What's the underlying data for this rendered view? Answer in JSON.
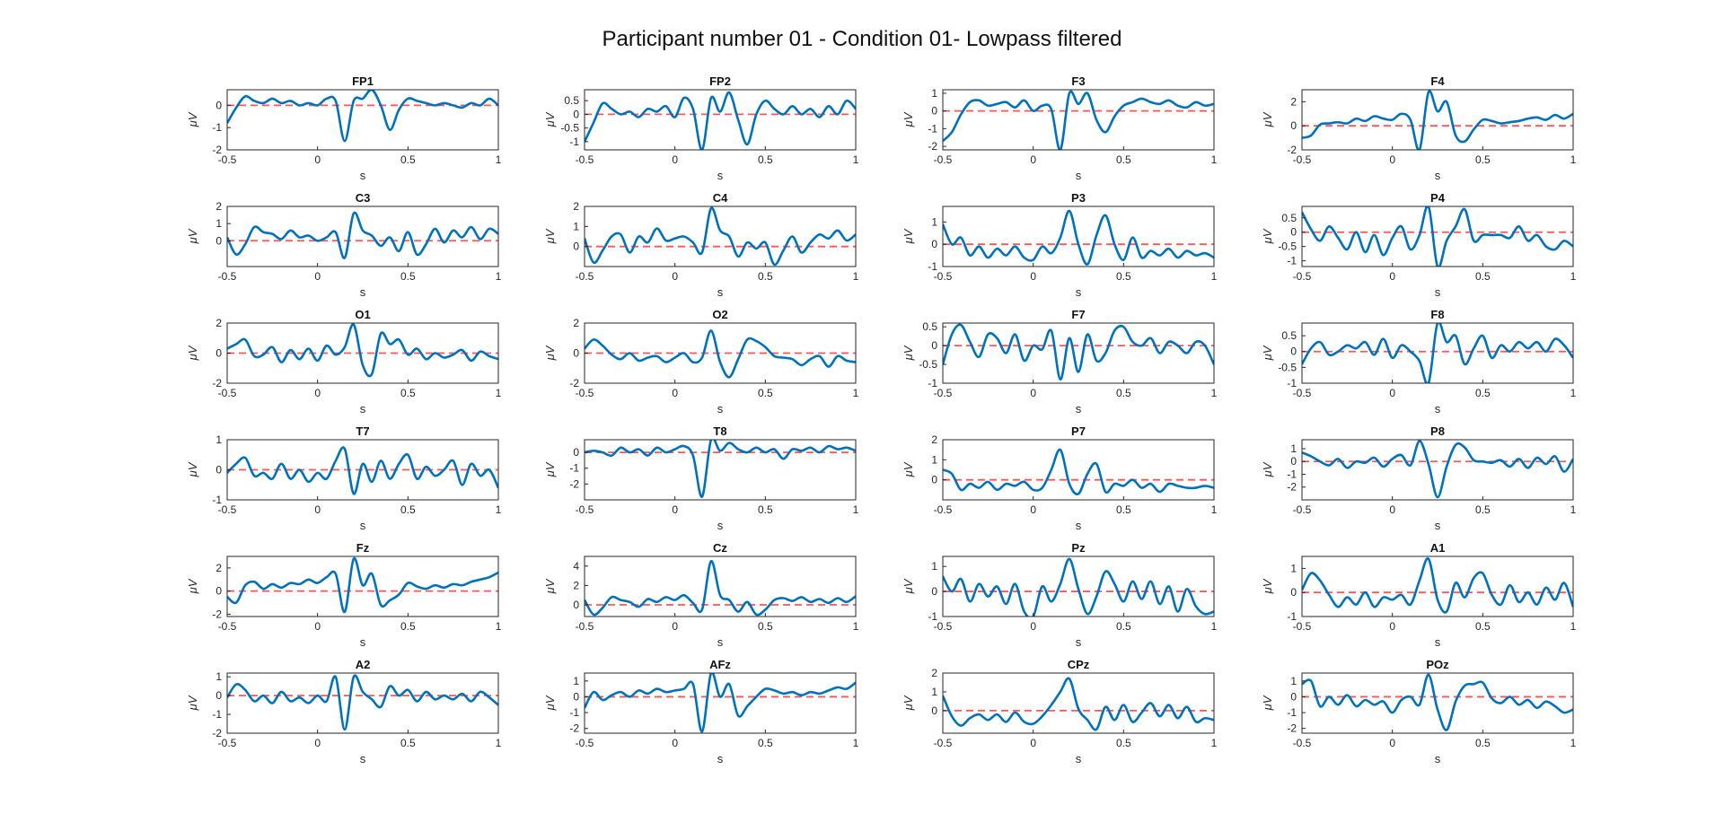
{
  "figure": {
    "title": "Participant number 01 - Condition 01- Lowpass filtered"
  },
  "style": {
    "signal_color": "#0072bd",
    "baseline_color": "#ff5555"
  },
  "chart_data": {
    "type": "line",
    "layout": "6x4 small multiples",
    "xlabel": "s",
    "ylabel": "μV",
    "xlim": [
      -0.5,
      1
    ],
    "xticks": [
      -0.5,
      0,
      0.5,
      1
    ],
    "xtick_labels": [
      "-0.5",
      "0",
      "0.5",
      "1"
    ],
    "grid": false,
    "baseline": 0,
    "x_knots": [
      -0.5,
      -0.45,
      -0.4,
      -0.35,
      -0.3,
      -0.25,
      -0.2,
      -0.15,
      -0.1,
      -0.05,
      0,
      0.05,
      0.1,
      0.15,
      0.2,
      0.25,
      0.3,
      0.35,
      0.4,
      0.45,
      0.5,
      0.55,
      0.6,
      0.65,
      0.7,
      0.75,
      0.8,
      0.85,
      0.9,
      0.95,
      1
    ],
    "channels": [
      {
        "name": "FP1",
        "ylim": [
          -2,
          0.7
        ],
        "yticks": [
          -2,
          -1,
          0
        ],
        "y": [
          -0.8,
          -0.1,
          0.4,
          0.2,
          0.1,
          0.3,
          0.1,
          0.2,
          0.0,
          0.1,
          0.0,
          0.3,
          0.2,
          -1.6,
          0.2,
          0.3,
          0.7,
          0.0,
          -1.1,
          -0.2,
          0.3,
          0.2,
          0.1,
          0.0,
          0.1,
          0.0,
          -0.1,
          0.1,
          0.0,
          0.3,
          0.0
        ]
      },
      {
        "name": "FP2",
        "ylim": [
          -1.3,
          0.9
        ],
        "yticks": [
          -1,
          -0.5,
          0,
          0.5
        ],
        "y": [
          -1.0,
          -0.3,
          0.4,
          0.2,
          0.0,
          0.1,
          -0.1,
          0.2,
          0.1,
          0.3,
          -0.1,
          0.6,
          0.2,
          -1.3,
          0.6,
          0.1,
          0.8,
          -0.2,
          -1.1,
          0.0,
          0.5,
          0.2,
          0.0,
          0.3,
          0.0,
          0.2,
          -0.1,
          0.3,
          0.0,
          0.5,
          0.2
        ]
      },
      {
        "name": "F3",
        "ylim": [
          -2.2,
          1.2
        ],
        "yticks": [
          -2,
          -1,
          0,
          1
        ],
        "y": [
          -1.7,
          -1.2,
          -0.2,
          0.5,
          0.6,
          0.3,
          0.4,
          0.5,
          0.2,
          0.6,
          0.0,
          0.3,
          0.1,
          -2.2,
          1.0,
          0.4,
          1.0,
          -0.5,
          -1.2,
          -0.3,
          0.3,
          0.5,
          0.7,
          0.5,
          0.4,
          0.6,
          0.3,
          0.2,
          0.5,
          0.3,
          0.4
        ]
      },
      {
        "name": "F4",
        "ylim": [
          -2,
          3
        ],
        "yticks": [
          -2,
          0,
          2
        ],
        "y": [
          -1.0,
          -0.8,
          0.1,
          0.2,
          0.3,
          0.2,
          0.6,
          0.4,
          0.8,
          0.6,
          0.5,
          1.0,
          0.5,
          -2.0,
          2.8,
          1.2,
          2.0,
          -0.8,
          -1.3,
          -0.3,
          0.5,
          0.4,
          0.2,
          0.3,
          0.4,
          0.6,
          0.7,
          0.5,
          0.9,
          0.6,
          1.0
        ]
      },
      {
        "name": "C3",
        "ylim": [
          -1.5,
          2
        ],
        "yticks": [
          0,
          1,
          2
        ],
        "y": [
          0.2,
          -0.8,
          -0.2,
          0.8,
          0.5,
          0.4,
          0.1,
          0.6,
          0.2,
          0.3,
          0.0,
          0.2,
          0.5,
          -1.0,
          1.6,
          0.6,
          0.3,
          -0.3,
          0.2,
          -0.6,
          0.5,
          -0.8,
          -0.2,
          0.7,
          -0.1,
          0.6,
          0.2,
          0.8,
          0.1,
          0.7,
          0.4
        ]
      },
      {
        "name": "C4",
        "ylim": [
          -1,
          2
        ],
        "yticks": [
          0,
          1,
          2
        ],
        "y": [
          0.4,
          -0.8,
          -0.2,
          0.5,
          0.6,
          -0.3,
          0.5,
          0.2,
          0.9,
          0.3,
          0.4,
          0.5,
          0.2,
          -0.3,
          1.9,
          0.8,
          0.5,
          -0.5,
          0.2,
          -0.1,
          0.2,
          -0.9,
          -0.2,
          0.5,
          -0.3,
          0.2,
          0.6,
          0.4,
          0.8,
          0.3,
          0.6
        ]
      },
      {
        "name": "P3",
        "ylim": [
          -1,
          1.7
        ],
        "yticks": [
          -1,
          0,
          1
        ],
        "y": [
          0.9,
          0.0,
          0.3,
          -0.5,
          -0.1,
          -0.6,
          -0.2,
          -0.5,
          -0.1,
          -0.6,
          -0.7,
          -0.1,
          -0.4,
          0.3,
          1.5,
          0.0,
          -0.9,
          0.4,
          1.3,
          0.0,
          -0.7,
          0.3,
          -0.6,
          -0.3,
          -0.5,
          -0.2,
          -0.6,
          -0.3,
          -0.5,
          -0.4,
          -0.6
        ]
      },
      {
        "name": "P4",
        "ylim": [
          -1.2,
          0.9
        ],
        "yticks": [
          -1,
          -0.5,
          0,
          0.5
        ],
        "y": [
          0.7,
          0.1,
          -0.3,
          0.2,
          -0.2,
          -0.6,
          0.0,
          -0.7,
          -0.1,
          -0.8,
          -0.2,
          0.2,
          -0.6,
          -0.1,
          0.9,
          -1.2,
          -0.3,
          0.2,
          0.8,
          -0.3,
          -0.1,
          -0.1,
          -0.1,
          -0.2,
          0.2,
          -0.3,
          -0.1,
          -0.5,
          -0.6,
          -0.3,
          -0.5
        ]
      },
      {
        "name": "O1",
        "ylim": [
          -2,
          2
        ],
        "yticks": [
          -2,
          0,
          2
        ],
        "y": [
          0.3,
          0.6,
          0.9,
          -0.2,
          -0.1,
          0.4,
          -0.6,
          0.2,
          -0.4,
          0.3,
          -0.5,
          0.5,
          -0.1,
          0.4,
          1.9,
          -0.8,
          -1.4,
          1.3,
          0.6,
          0.9,
          -0.1,
          0.3,
          -0.4,
          0.0,
          -0.3,
          -0.1,
          0.2,
          -0.5,
          0.1,
          -0.2,
          -0.4
        ]
      },
      {
        "name": "O2",
        "ylim": [
          -2,
          2
        ],
        "yticks": [
          -2,
          0,
          2
        ],
        "y": [
          0.3,
          0.9,
          0.5,
          -0.1,
          -0.4,
          0.0,
          -0.5,
          -0.3,
          -0.2,
          -0.6,
          -0.3,
          0.0,
          -0.6,
          -0.3,
          1.5,
          -0.6,
          -1.6,
          -0.4,
          0.9,
          0.8,
          0.4,
          -0.2,
          -0.3,
          -0.4,
          -0.8,
          -0.4,
          -0.2,
          -0.9,
          -0.2,
          -0.5,
          -0.6
        ]
      },
      {
        "name": "F7",
        "ylim": [
          -1,
          0.6
        ],
        "yticks": [
          -1,
          -0.5,
          0,
          0.5
        ],
        "y": [
          -0.5,
          0.3,
          0.55,
          0.1,
          -0.3,
          0.3,
          0.2,
          -0.2,
          0.3,
          -0.4,
          0.0,
          -0.1,
          0.4,
          -0.9,
          0.2,
          -0.7,
          0.3,
          -0.4,
          -0.2,
          0.4,
          0.5,
          0.1,
          0.0,
          0.2,
          -0.2,
          0.1,
          0.0,
          -0.2,
          0.1,
          0.0,
          -0.5
        ]
      },
      {
        "name": "F8",
        "ylim": [
          -1,
          0.9
        ],
        "yticks": [
          -1,
          -0.5,
          0,
          0.5
        ],
        "y": [
          -0.4,
          0.1,
          0.3,
          -0.1,
          0.0,
          0.2,
          0.1,
          0.3,
          -0.1,
          0.4,
          -0.2,
          0.2,
          0.0,
          -0.3,
          -1.0,
          0.9,
          0.3,
          0.5,
          -0.4,
          0.1,
          0.5,
          -0.2,
          0.2,
          0.0,
          0.3,
          0.1,
          0.3,
          0.0,
          0.4,
          0.2,
          -0.2
        ]
      },
      {
        "name": "T7",
        "ylim": [
          -1,
          1
        ],
        "yticks": [
          -1,
          0,
          1
        ],
        "y": [
          -0.1,
          0.2,
          0.4,
          -0.2,
          -0.1,
          -0.3,
          0.2,
          -0.3,
          0.0,
          -0.4,
          -0.1,
          -0.3,
          0.3,
          0.7,
          -0.8,
          0.2,
          -0.4,
          0.3,
          -0.3,
          0.2,
          0.5,
          -0.3,
          0.1,
          -0.2,
          0.0,
          0.3,
          -0.5,
          0.2,
          -0.2,
          0.0,
          -0.6
        ]
      },
      {
        "name": "T8",
        "ylim": [
          -3,
          0.8
        ],
        "yticks": [
          -2,
          -1,
          0
        ],
        "y": [
          0.0,
          0.1,
          0.0,
          -0.2,
          0.3,
          0.0,
          0.2,
          -0.2,
          0.3,
          0.0,
          0.2,
          0.4,
          -0.2,
          -2.8,
          0.8,
          0.1,
          0.6,
          0.2,
          0.0,
          0.3,
          0.0,
          0.2,
          -0.4,
          0.2,
          0.1,
          0.3,
          0.0,
          0.4,
          0.2,
          0.3,
          0.1
        ]
      },
      {
        "name": "P7",
        "ylim": [
          -1,
          2
        ],
        "yticks": [
          0,
          1,
          2
        ],
        "y": [
          0.5,
          0.3,
          -0.5,
          -0.2,
          -0.4,
          -0.1,
          -0.5,
          -0.2,
          -0.3,
          -0.1,
          -0.5,
          -0.4,
          0.5,
          1.5,
          -0.2,
          -0.7,
          0.3,
          0.8,
          -0.6,
          -0.2,
          -0.3,
          0.0,
          -0.4,
          -0.2,
          -0.6,
          -0.2,
          -0.3,
          -0.4,
          -0.4,
          -0.3,
          -0.4
        ]
      },
      {
        "name": "P8",
        "ylim": [
          -3,
          1.7
        ],
        "yticks": [
          -2,
          -1,
          0,
          1
        ],
        "y": [
          0.7,
          0.4,
          0.0,
          -0.3,
          0.2,
          -0.5,
          0.0,
          -0.1,
          0.3,
          -0.4,
          0.2,
          0.5,
          -0.3,
          1.6,
          -0.2,
          -2.8,
          -0.4,
          1.3,
          1.1,
          0.1,
          0.0,
          -0.1,
          0.1,
          -0.4,
          0.2,
          -0.5,
          0.3,
          -0.2,
          0.4,
          -0.8,
          0.2
        ]
      },
      {
        "name": "Fz",
        "ylim": [
          -2.2,
          3
        ],
        "yticks": [
          -2,
          0,
          2
        ],
        "y": [
          -0.5,
          -1.0,
          0.5,
          0.8,
          0.2,
          0.6,
          0.3,
          0.7,
          0.6,
          1.0,
          0.7,
          1.2,
          1.5,
          -1.8,
          2.8,
          0.5,
          1.5,
          -1.2,
          -0.8,
          -0.3,
          0.7,
          0.4,
          0.2,
          0.5,
          0.3,
          0.6,
          0.5,
          0.8,
          1.0,
          1.2,
          1.6
        ]
      },
      {
        "name": "Cz",
        "ylim": [
          -1.2,
          5
        ],
        "yticks": [
          0,
          2,
          4
        ],
        "y": [
          0.5,
          -1.0,
          -0.3,
          0.8,
          0.5,
          0.3,
          -0.2,
          0.6,
          0.3,
          0.8,
          0.5,
          1.0,
          0.2,
          -0.5,
          4.5,
          1.0,
          0.5,
          -0.7,
          0.3,
          -1.0,
          -0.5,
          0.5,
          0.7,
          0.4,
          0.8,
          0.3,
          0.6,
          0.2,
          0.7,
          0.3,
          0.9
        ]
      },
      {
        "name": "Pz",
        "ylim": [
          -1,
          1.4
        ],
        "yticks": [
          -1,
          0,
          1
        ],
        "y": [
          0.6,
          0.0,
          0.5,
          -0.4,
          0.3,
          -0.2,
          0.2,
          -0.5,
          0.3,
          -0.8,
          -1.0,
          0.2,
          -0.4,
          0.3,
          1.3,
          0.1,
          -0.9,
          -0.2,
          0.8,
          0.3,
          -0.4,
          0.4,
          -0.3,
          0.4,
          -0.5,
          0.2,
          -0.8,
          0.1,
          -0.6,
          -0.9,
          -0.8
        ]
      },
      {
        "name": "A1",
        "ylim": [
          -1,
          1.5
        ],
        "yticks": [
          -1,
          0,
          1
        ],
        "y": [
          0.1,
          0.8,
          0.5,
          -0.1,
          -0.6,
          -0.2,
          -0.5,
          0.0,
          -0.6,
          -0.2,
          -0.3,
          -0.1,
          -0.5,
          0.5,
          1.4,
          -0.3,
          -0.8,
          0.4,
          -0.2,
          0.6,
          0.8,
          -0.1,
          -0.5,
          0.3,
          -0.4,
          0.0,
          -0.5,
          0.2,
          -0.3,
          0.4,
          -0.6
        ]
      },
      {
        "name": "A2",
        "ylim": [
          -2,
          1.2
        ],
        "yticks": [
          -2,
          -1,
          0,
          1
        ],
        "y": [
          -0.1,
          0.6,
          0.3,
          -0.3,
          0.0,
          -0.4,
          0.2,
          -0.3,
          -0.1,
          -0.4,
          0.0,
          -0.3,
          1.0,
          -1.8,
          1.0,
          0.2,
          -0.2,
          -0.6,
          0.5,
          0.0,
          0.3,
          -0.3,
          0.2,
          -0.2,
          0.0,
          -0.2,
          0.1,
          -0.3,
          0.2,
          -0.1,
          -0.5
        ]
      },
      {
        "name": "AFz",
        "ylim": [
          -2.3,
          1.5
        ],
        "yticks": [
          -2,
          -1,
          0,
          1
        ],
        "y": [
          -0.7,
          0.3,
          -0.2,
          0.1,
          0.3,
          0.0,
          0.4,
          0.2,
          0.5,
          0.3,
          0.4,
          0.5,
          0.8,
          -2.2,
          1.5,
          0.0,
          0.8,
          -1.2,
          -0.6,
          0.0,
          0.5,
          0.4,
          0.2,
          0.3,
          0.1,
          0.3,
          0.2,
          0.4,
          0.6,
          0.5,
          0.9
        ]
      },
      {
        "name": "CPz",
        "ylim": [
          -1.2,
          2
        ],
        "yticks": [
          0,
          1,
          2
        ],
        "y": [
          0.8,
          -0.3,
          -0.8,
          -0.4,
          -0.2,
          -0.5,
          -0.2,
          -0.6,
          -0.1,
          -0.6,
          -0.7,
          -0.3,
          0.3,
          1.0,
          1.7,
          0.1,
          -0.5,
          -1.0,
          0.2,
          -0.5,
          0.3,
          -0.6,
          -0.1,
          0.4,
          -0.3,
          0.3,
          -0.4,
          0.2,
          -0.6,
          -0.4,
          -0.5
        ]
      },
      {
        "name": "POz",
        "ylim": [
          -2.3,
          1.5
        ],
        "yticks": [
          -2,
          -1,
          0,
          1
        ],
        "y": [
          0.8,
          1.0,
          -0.6,
          0.0,
          -0.5,
          0.1,
          -0.6,
          -0.2,
          -0.5,
          -0.3,
          -1.0,
          -0.2,
          0.0,
          -0.5,
          1.4,
          -0.8,
          -2.1,
          -0.3,
          0.7,
          0.8,
          0.9,
          -0.1,
          -0.4,
          0.0,
          -0.5,
          -0.2,
          -0.7,
          -0.3,
          -0.6,
          -1.0,
          -0.8
        ]
      }
    ]
  }
}
